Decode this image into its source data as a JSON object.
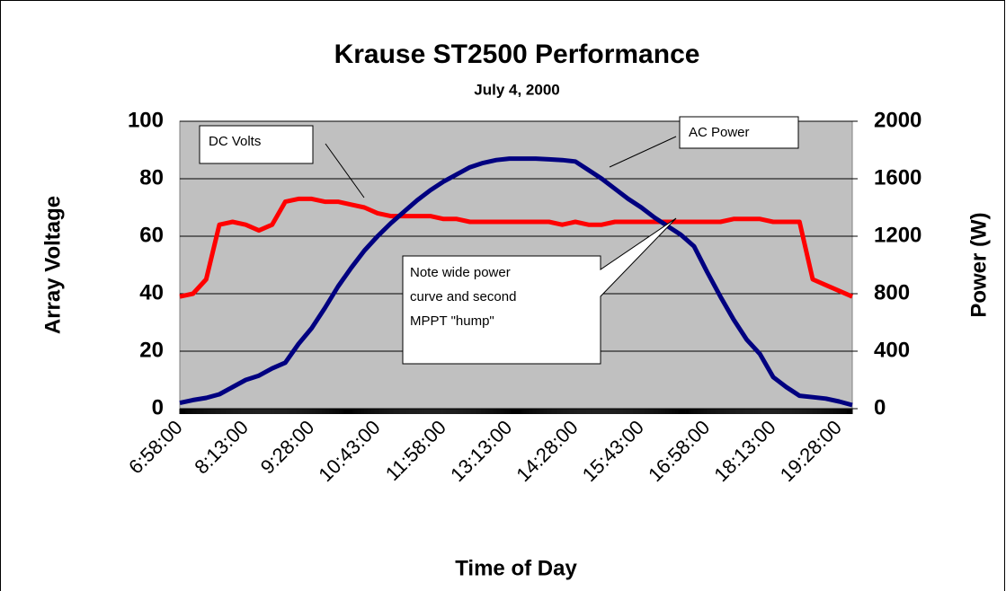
{
  "chart_data": {
    "type": "line",
    "title": "Krause ST2500 Performance",
    "subtitle": "July 4, 2000",
    "x_label": "Time of Day",
    "y_label": "Array Voltage",
    "y2_label": "Power (W)",
    "categories": [
      "6:58:00",
      null,
      null,
      null,
      null,
      "8:13:00",
      null,
      null,
      null,
      null,
      "9:28:00",
      null,
      null,
      null,
      null,
      "10:43:00",
      null,
      null,
      null,
      null,
      "11:58:00",
      null,
      null,
      null,
      null,
      "13:13:00",
      null,
      null,
      null,
      null,
      "14:28:00",
      null,
      null,
      null,
      null,
      "15:43:00",
      null,
      null,
      null,
      null,
      "16:58:00",
      null,
      null,
      null,
      null,
      "18:13:00",
      null,
      null,
      null,
      null,
      "19:28:00",
      null
    ],
    "series": [
      {
        "name": "DC Volts",
        "color": "#ff0000",
        "values": [
          39,
          40,
          45,
          64,
          65,
          64,
          62,
          64,
          72,
          73,
          73,
          72,
          72,
          71,
          70,
          68,
          67,
          67,
          67,
          67,
          66,
          66,
          65,
          65,
          65,
          65,
          65,
          65,
          65,
          64,
          65,
          64,
          64,
          65,
          65,
          65,
          65,
          65,
          65,
          65,
          65,
          65,
          66,
          66,
          66,
          65,
          65,
          65,
          45,
          43,
          41,
          39
        ]
      },
      {
        "name": "AC Power",
        "color": "#000080",
        "axis": "y2",
        "values": [
          40,
          60,
          75,
          100,
          150,
          200,
          230,
          280,
          320,
          450,
          560,
          700,
          850,
          980,
          1100,
          1200,
          1290,
          1370,
          1450,
          1520,
          1580,
          1630,
          1680,
          1710,
          1730,
          1740,
          1740,
          1740,
          1735,
          1730,
          1720,
          1660,
          1600,
          1530,
          1460,
          1400,
          1330,
          1270,
          1210,
          1130,
          950,
          780,
          620,
          480,
          380,
          220,
          150,
          90,
          80,
          70,
          50,
          25
        ]
      }
    ],
    "annotations": [
      "DC Volts",
      "AC Power",
      "Note wide power",
      "curve and second",
      "MPPT \"hump\""
    ],
    "ylim": [
      0,
      100
    ],
    "yticks": [
      0,
      20,
      40,
      60,
      80,
      100
    ],
    "y2lim": [
      0,
      2000
    ],
    "y2ticks": [
      0,
      400,
      800,
      1200,
      1600,
      2000
    ],
    "grid": true
  }
}
